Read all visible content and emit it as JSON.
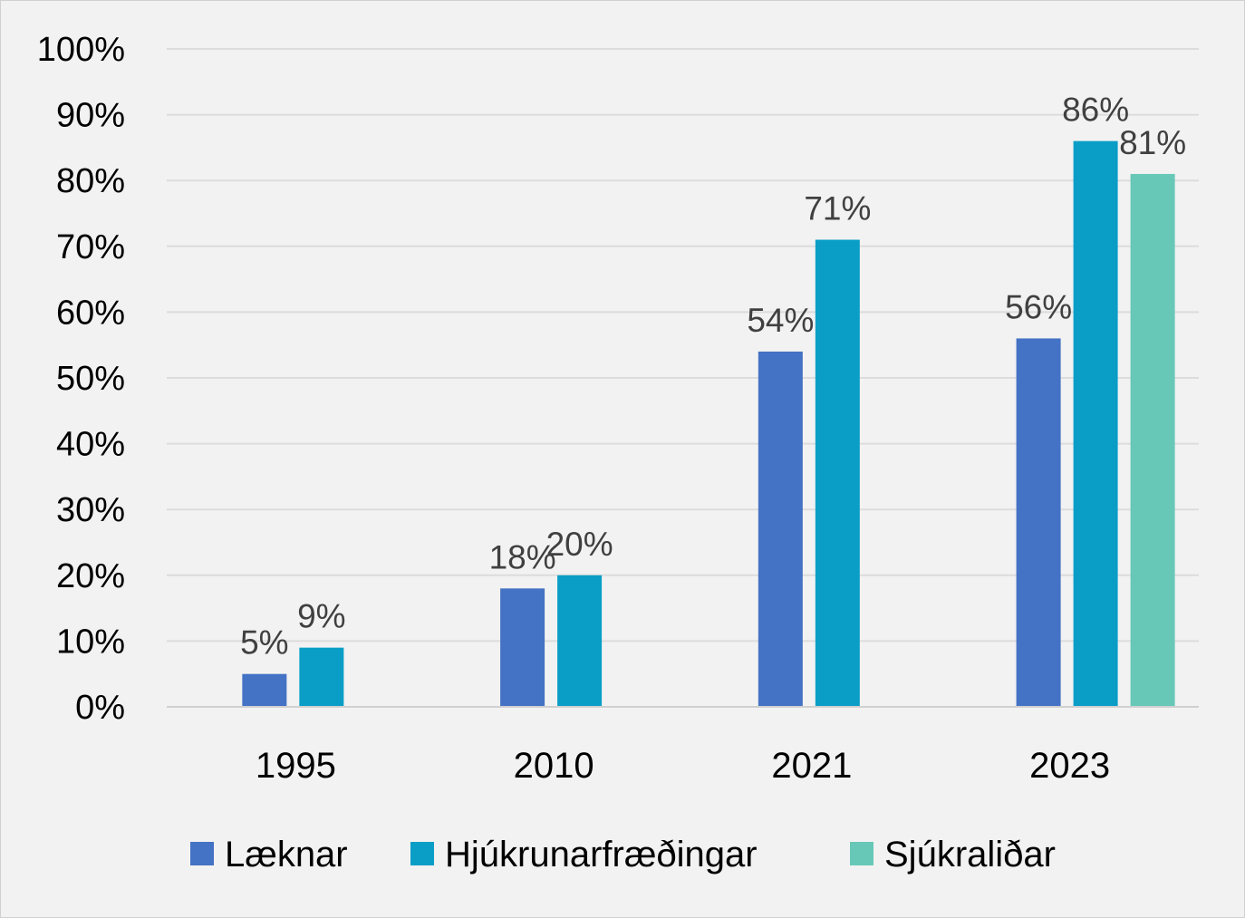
{
  "chart_data": {
    "type": "bar",
    "title": "",
    "xlabel": "",
    "ylabel": "",
    "categories": [
      "1995",
      "2010",
      "2021",
      "2023"
    ],
    "series": [
      {
        "name": "Læknar",
        "color": "#4472c4",
        "values": [
          5,
          18,
          54,
          56
        ],
        "labels": [
          "5%",
          "18%",
          "54%",
          "56%"
        ]
      },
      {
        "name": "Hjúkrunarfræðingar",
        "color": "#0a9ec7",
        "values": [
          9,
          20,
          71,
          86
        ],
        "labels": [
          "9%",
          "20%",
          "71%",
          "86%"
        ]
      },
      {
        "name": "Sjúkraliðar",
        "color": "#68c8b7",
        "values": [
          null,
          null,
          null,
          81
        ],
        "labels": [
          null,
          null,
          null,
          "81%"
        ]
      }
    ],
    "ylim": [
      0,
      100
    ],
    "yticks": [
      "0%",
      "10%",
      "20%",
      "30%",
      "40%",
      "50%",
      "60%",
      "70%",
      "80%",
      "90%",
      "100%"
    ],
    "grid": true,
    "legend_position": "bottom"
  }
}
